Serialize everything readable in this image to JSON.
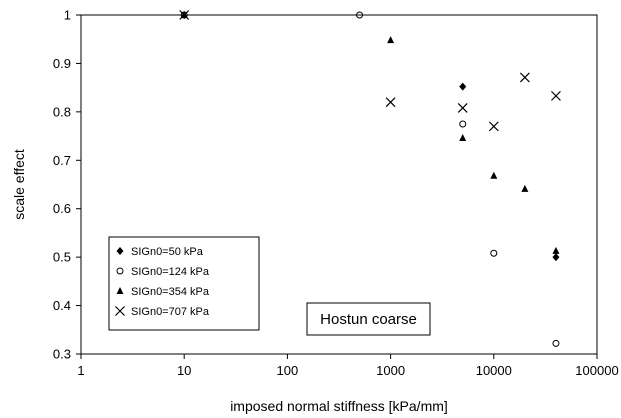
{
  "chart_data": {
    "type": "scatter",
    "title": "",
    "xlabel": "imposed normal stiffness [kPa/mm]",
    "ylabel": "scale effect",
    "x_scale": "log",
    "xlim": [
      1,
      100000
    ],
    "ylim": [
      0.3,
      1.0
    ],
    "x_ticks": [
      1,
      10,
      100,
      1000,
      10000,
      100000
    ],
    "x_tick_labels": [
      "1",
      "10",
      "100",
      "1000",
      "10000",
      "100000"
    ],
    "y_ticks": [
      0.3,
      0.4,
      0.5,
      0.6,
      0.7,
      0.8,
      0.9,
      1.0
    ],
    "y_tick_labels": [
      "0.3",
      "0.4",
      "0.5",
      "0.6",
      "0.7",
      "0.8",
      "0.9",
      "1"
    ],
    "grid": false,
    "legend_position": "lower-left",
    "annotation": "Hostun coarse",
    "series": [
      {
        "name": "SIGn0=50 kPa",
        "marker": "diamond",
        "points": [
          {
            "x": 10,
            "y": 1.0
          },
          {
            "x": 5000,
            "y": 0.852
          },
          {
            "x": 40000,
            "y": 0.5
          }
        ]
      },
      {
        "name": "SIGn0=124 kPa",
        "marker": "circle-open",
        "points": [
          {
            "x": 10,
            "y": 1.0
          },
          {
            "x": 500,
            "y": 1.0
          },
          {
            "x": 5000,
            "y": 0.775
          },
          {
            "x": 10000,
            "y": 0.508
          },
          {
            "x": 40000,
            "y": 0.322
          }
        ]
      },
      {
        "name": "SIGn0=354 kPa",
        "marker": "triangle",
        "points": [
          {
            "x": 10,
            "y": 1.0
          },
          {
            "x": 1000,
            "y": 0.948
          },
          {
            "x": 5000,
            "y": 0.746
          },
          {
            "x": 10000,
            "y": 0.668
          },
          {
            "x": 20000,
            "y": 0.641
          },
          {
            "x": 40000,
            "y": 0.513
          }
        ]
      },
      {
        "name": "SIGn0=707 kPa",
        "marker": "cross",
        "points": [
          {
            "x": 10,
            "y": 1.0
          },
          {
            "x": 1000,
            "y": 0.82
          },
          {
            "x": 5000,
            "y": 0.808
          },
          {
            "x": 10000,
            "y": 0.77
          },
          {
            "x": 20000,
            "y": 0.871
          },
          {
            "x": 40000,
            "y": 0.833
          }
        ]
      }
    ]
  }
}
